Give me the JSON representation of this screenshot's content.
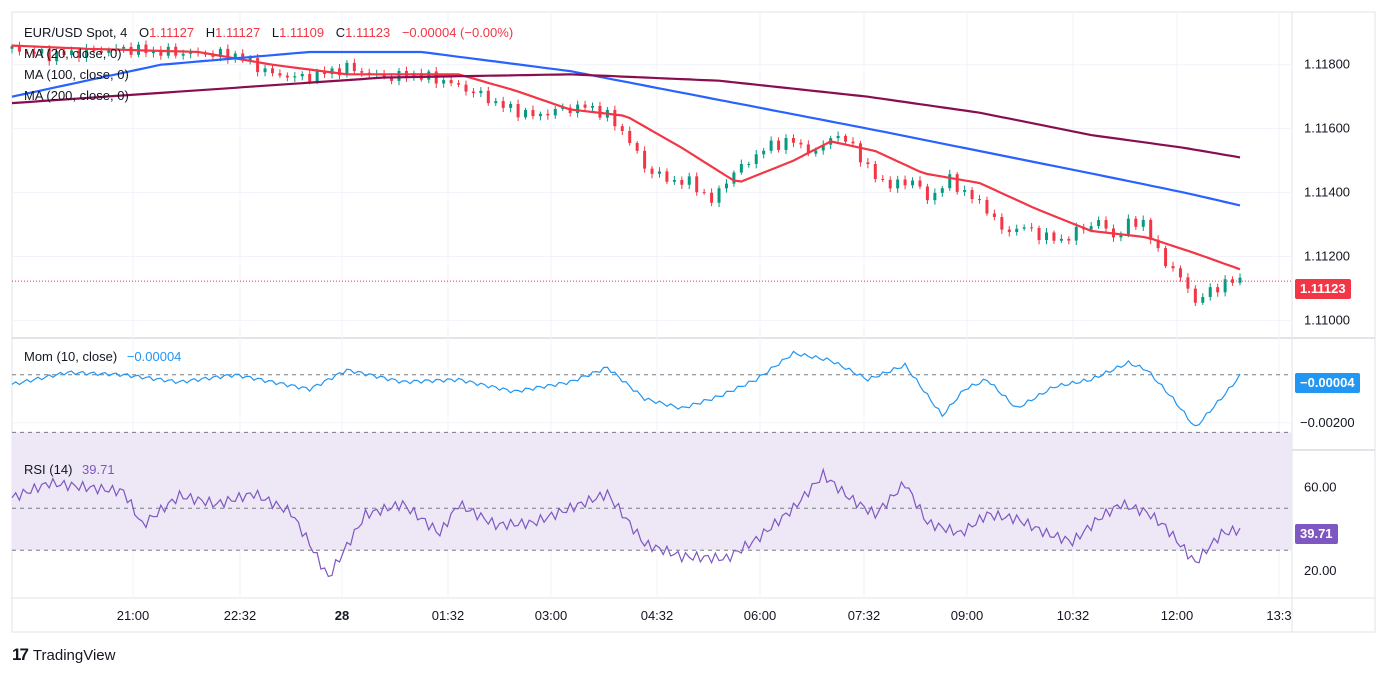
{
  "header": {
    "symbol": "EUR/USD Spot, 4",
    "open_label": "O",
    "open": "1.11127",
    "high_label": "H",
    "high": "1.11127",
    "low_label": "L",
    "low": "1.11109",
    "close_label": "C",
    "close": "1.11123",
    "change": "−0.00004 (−0.00%)"
  },
  "legend": {
    "ma20": "MA (20, close, 0)",
    "ma100": "MA (100, close, 0)",
    "ma200": "MA (200, close, 0)"
  },
  "mom": {
    "label": "Mom (10, close)",
    "value": "−0.00004",
    "tag": "−0.00004"
  },
  "rsi": {
    "label": "RSI (14)",
    "value": "39.71",
    "tag": "39.71"
  },
  "price_tag": "1.11123",
  "brand": "TradingView",
  "colors": {
    "up": "#089981",
    "down": "#f23645",
    "ma20": "#f23645",
    "ma100": "#2962ff",
    "ma200": "#880e4f",
    "mom": "#2196f3",
    "rsi": "#7e57c2",
    "rsi_band": "#ede7f6"
  },
  "chart_data": [
    {
      "type": "candlestick",
      "title": "EUR/USD Spot, 4",
      "y_ticks": [
        "1.11800",
        "1.11600",
        "1.11400",
        "1.11200",
        "1.11000"
      ],
      "ylim": [
        1.1097,
        1.1194
      ],
      "x_ticks": [
        "21:00",
        "22:32",
        "28",
        "01:32",
        "03:00",
        "04:32",
        "06:00",
        "07:32",
        "09:00",
        "10:32",
        "12:00",
        "13:3"
      ],
      "last_price": 1.11123,
      "close_path": [
        [
          0,
          1.1185
        ],
        [
          10,
          1.1183
        ],
        [
          20,
          1.1184
        ],
        [
          30,
          1.1185
        ],
        [
          40,
          1.1184
        ],
        [
          60,
          1.1183
        ],
        [
          70,
          1.1177
        ],
        [
          78,
          1.1176
        ],
        [
          90,
          1.1179
        ],
        [
          100,
          1.1176
        ],
        [
          108,
          1.1177
        ],
        [
          116,
          1.1175
        ],
        [
          125,
          1.1171
        ],
        [
          132,
          1.1167
        ],
        [
          140,
          1.1164
        ],
        [
          148,
          1.1166
        ],
        [
          155,
          1.1167
        ],
        [
          160,
          1.1164
        ],
        [
          165,
          1.1158
        ],
        [
          170,
          1.1148
        ],
        [
          176,
          1.1144
        ],
        [
          183,
          1.1143
        ],
        [
          188,
          1.1137
        ],
        [
          192,
          1.1144
        ],
        [
          198,
          1.115
        ],
        [
          204,
          1.1155
        ],
        [
          210,
          1.1156
        ],
        [
          216,
          1.1152
        ],
        [
          220,
          1.1158
        ],
        [
          226,
          1.1155
        ],
        [
          230,
          1.1147
        ],
        [
          236,
          1.1142
        ],
        [
          242,
          1.1144
        ],
        [
          246,
          1.1138
        ],
        [
          252,
          1.1144
        ],
        [
          256,
          1.114
        ],
        [
          262,
          1.1135
        ],
        [
          266,
          1.1128
        ],
        [
          272,
          1.1129
        ],
        [
          278,
          1.1126
        ],
        [
          282,
          1.1125
        ],
        [
          288,
          1.1129
        ],
        [
          292,
          1.1131
        ],
        [
          296,
          1.1126
        ],
        [
          300,
          1.113
        ],
        [
          304,
          1.1131
        ],
        [
          308,
          1.1121
        ],
        [
          312,
          1.1116
        ],
        [
          316,
          1.111
        ],
        [
          318,
          1.1106
        ],
        [
          322,
          1.1109
        ],
        [
          326,
          1.1112
        ],
        [
          330,
          1.11123
        ]
      ],
      "series": [
        {
          "name": "MA (20, close, 0)",
          "points": [
            [
              0,
              1.1186
            ],
            [
              20,
              1.1185
            ],
            [
              50,
              1.1184
            ],
            [
              70,
              1.118
            ],
            [
              90,
              1.1177
            ],
            [
              120,
              1.1177
            ],
            [
              135,
              1.1172
            ],
            [
              150,
              1.1166
            ],
            [
              165,
              1.1164
            ],
            [
              180,
              1.1154
            ],
            [
              195,
              1.1143
            ],
            [
              210,
              1.115
            ],
            [
              220,
              1.1156
            ],
            [
              232,
              1.1153
            ],
            [
              245,
              1.1146
            ],
            [
              260,
              1.1143
            ],
            [
              275,
              1.1135
            ],
            [
              290,
              1.1128
            ],
            [
              305,
              1.1126
            ],
            [
              318,
              1.1121
            ],
            [
              330,
              1.1116
            ]
          ]
        },
        {
          "name": "MA (100, close, 0)",
          "points": [
            [
              0,
              1.117
            ],
            [
              40,
              1.118
            ],
            [
              80,
              1.1184
            ],
            [
              110,
              1.1184
            ],
            [
              150,
              1.1178
            ],
            [
              190,
              1.1169
            ],
            [
              230,
              1.116
            ],
            [
              260,
              1.1153
            ],
            [
              290,
              1.1146
            ],
            [
              315,
              1.114
            ],
            [
              330,
              1.1136
            ]
          ]
        },
        {
          "name": "MA (200, close, 0)",
          "points": [
            [
              0,
              1.1168
            ],
            [
              50,
              1.1172
            ],
            [
              100,
              1.1176
            ],
            [
              150,
              1.1177
            ],
            [
              190,
              1.1175
            ],
            [
              230,
              1.117
            ],
            [
              260,
              1.1165
            ],
            [
              290,
              1.1158
            ],
            [
              315,
              1.1154
            ],
            [
              330,
              1.1151
            ]
          ]
        }
      ]
    },
    {
      "type": "line",
      "title": "Mom (10, close)",
      "y_ticks": [
        "−0.00200"
      ],
      "ylim": [
        -0.0028,
        0.0012
      ],
      "series": [
        {
          "name": "Mom (10, close)",
          "points": [
            [
              0,
              -0.0004
            ],
            [
              15,
              0.0001
            ],
            [
              30,
              0.0
            ],
            [
              45,
              -0.0003
            ],
            [
              60,
              0.0
            ],
            [
              80,
              -0.0006
            ],
            [
              90,
              0.0002
            ],
            [
              105,
              -0.0003
            ],
            [
              120,
              -0.0002
            ],
            [
              135,
              -0.0007
            ],
            [
              150,
              -0.0003
            ],
            [
              160,
              0.0003
            ],
            [
              170,
              -0.001
            ],
            [
              180,
              -0.0014
            ],
            [
              190,
              -0.0009
            ],
            [
              200,
              -0.0002
            ],
            [
              210,
              0.0009
            ],
            [
              220,
              0.0006
            ],
            [
              230,
              -0.0002
            ],
            [
              240,
              0.0004
            ],
            [
              250,
              -0.0017
            ],
            [
              256,
              -0.0006
            ],
            [
              262,
              -0.0002
            ],
            [
              270,
              -0.0014
            ],
            [
              280,
              -0.0005
            ],
            [
              290,
              -0.0002
            ],
            [
              300,
              0.0005
            ],
            [
              305,
              0.0002
            ],
            [
              312,
              -0.001
            ],
            [
              318,
              -0.0022
            ],
            [
              326,
              -0.0008
            ],
            [
              330,
              -4e-05
            ]
          ]
        }
      ]
    },
    {
      "type": "line",
      "title": "RSI (14)",
      "y_ticks": [
        "60.00",
        "20.00"
      ],
      "ylim": [
        11,
        74
      ],
      "bands": [
        30,
        70
      ],
      "series": [
        {
          "name": "RSI (14)",
          "points": [
            [
              0,
              55
            ],
            [
              10,
              62
            ],
            [
              20,
              60
            ],
            [
              30,
              58
            ],
            [
              35,
              42
            ],
            [
              45,
              56
            ],
            [
              55,
              52
            ],
            [
              65,
              57
            ],
            [
              75,
              48
            ],
            [
              80,
              33
            ],
            [
              85,
              17
            ],
            [
              95,
              47
            ],
            [
              105,
              52
            ],
            [
              115,
              38
            ],
            [
              120,
              52
            ],
            [
              130,
              42
            ],
            [
              140,
              43
            ],
            [
              150,
              50
            ],
            [
              160,
              57
            ],
            [
              170,
              33
            ],
            [
              180,
              27
            ],
            [
              192,
              26
            ],
            [
              200,
              35
            ],
            [
              210,
              50
            ],
            [
              218,
              66
            ],
            [
              225,
              55
            ],
            [
              232,
              47
            ],
            [
              240,
              62
            ],
            [
              246,
              43
            ],
            [
              255,
              38
            ],
            [
              262,
              47
            ],
            [
              270,
              45
            ],
            [
              278,
              38
            ],
            [
              285,
              34
            ],
            [
              292,
              45
            ],
            [
              298,
              52
            ],
            [
              305,
              48
            ],
            [
              310,
              41
            ],
            [
              318,
              24
            ],
            [
              325,
              38
            ],
            [
              330,
              39.71
            ]
          ]
        }
      ]
    }
  ]
}
